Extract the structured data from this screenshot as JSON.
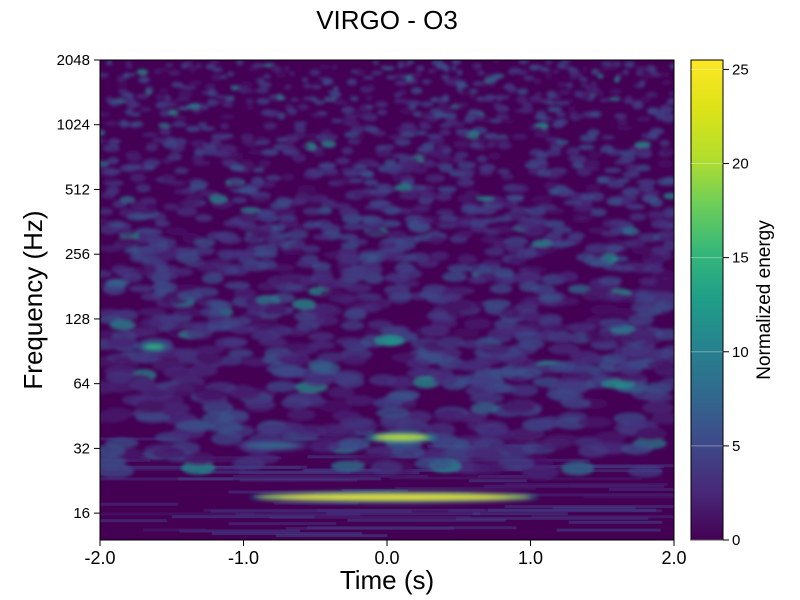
{
  "chart_data": {
    "type": "heatmap",
    "title": "VIRGO - O3",
    "xlabel": "Time (s)",
    "ylabel": "Frequency (Hz)",
    "xlim": [
      -2.0,
      2.0
    ],
    "ylim": [
      12,
      2048
    ],
    "yscale": "log2",
    "x_ticks": [
      -2.0,
      -1.0,
      0.0,
      1.0,
      2.0
    ],
    "x_tick_labels": [
      "-2.0",
      "-1.0",
      "0.0",
      "1.0",
      "2.0"
    ],
    "y_ticks": [
      16,
      32,
      64,
      128,
      256,
      512,
      1024,
      2048
    ],
    "y_tick_labels": [
      "16",
      "32",
      "64",
      "128",
      "256",
      "512",
      "1024",
      "2048"
    ],
    "colormap": "viridis",
    "colorbar": {
      "label": "Normalized energy",
      "range": [
        0,
        25.5
      ],
      "ticks": [
        0,
        5,
        10,
        15,
        20,
        25
      ],
      "tick_labels": [
        "0",
        "5",
        "10",
        "15",
        "20",
        "25"
      ]
    },
    "features": [
      {
        "t_start": -0.9,
        "t_end": 1.0,
        "freq": 19,
        "energy": 25
      },
      {
        "t_start": -0.1,
        "t_end": 0.3,
        "freq": 36,
        "energy": 22
      },
      {
        "t_start": -1.7,
        "t_end": -1.55,
        "freq": 95,
        "energy": 15
      },
      {
        "t_start": -1.0,
        "t_end": -0.6,
        "freq": 33,
        "energy": 8
      }
    ],
    "background_energy": [
      0,
      3
    ]
  }
}
